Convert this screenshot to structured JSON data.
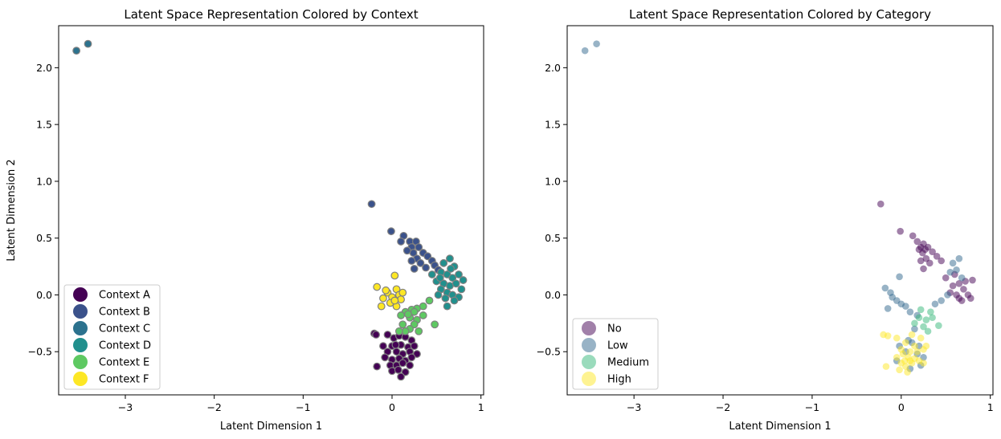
{
  "chart_data": [
    {
      "type": "scatter",
      "title": "Latent Space Representation Colored by Context",
      "xlabel": "Latent Dimension 1",
      "ylabel": "Latent Dimension 2",
      "xlim": [
        -3.75,
        1.03
      ],
      "ylim": [
        -0.88,
        2.37
      ],
      "xticks": [
        -3,
        -2,
        -1,
        0,
        1
      ],
      "yticks": [
        -0.5,
        0.0,
        0.5,
        1.0,
        1.5,
        2.0
      ],
      "xtick_labels": [
        "−3",
        "−2",
        "−1",
        "0",
        "1"
      ],
      "ytick_labels": [
        "−0.5",
        "0.0",
        "0.5",
        "1.0",
        "1.5",
        "2.0"
      ],
      "legend_position": "lower-left",
      "marker_edge": "#808080",
      "marker_alpha": 1.0,
      "series": [
        {
          "name": "Context A",
          "color": "#440154",
          "points": [
            [
              -0.05,
              -0.35
            ],
            [
              0.02,
              -0.38
            ],
            [
              0.08,
              -0.36
            ],
            [
              0.15,
              -0.37
            ],
            [
              0.22,
              -0.4
            ],
            [
              -0.1,
              -0.45
            ],
            [
              0.0,
              -0.45
            ],
            [
              0.1,
              -0.44
            ],
            [
              0.18,
              -0.46
            ],
            [
              0.25,
              -0.45
            ],
            [
              -0.05,
              -0.5
            ],
            [
              0.05,
              -0.5
            ],
            [
              0.12,
              -0.52
            ],
            [
              0.2,
              -0.5
            ],
            [
              0.28,
              -0.52
            ],
            [
              -0.08,
              -0.55
            ],
            [
              0.0,
              -0.57
            ],
            [
              0.08,
              -0.56
            ],
            [
              0.15,
              -0.58
            ],
            [
              0.22,
              -0.55
            ],
            [
              -0.02,
              -0.62
            ],
            [
              0.05,
              -0.62
            ],
            [
              0.12,
              -0.6
            ],
            [
              0.2,
              -0.62
            ],
            [
              0.0,
              -0.67
            ],
            [
              0.07,
              -0.66
            ],
            [
              0.15,
              -0.68
            ],
            [
              0.1,
              -0.72
            ],
            [
              -0.2,
              -0.34
            ],
            [
              -0.18,
              -0.35
            ],
            [
              -0.17,
              -0.63
            ],
            [
              0.04,
              -0.44
            ]
          ]
        },
        {
          "name": "Context B",
          "color": "#3b528b",
          "points": [
            [
              -0.23,
              0.8
            ],
            [
              -0.01,
              0.56
            ],
            [
              0.13,
              0.52
            ],
            [
              0.2,
              0.47
            ],
            [
              0.27,
              0.47
            ],
            [
              0.22,
              0.42
            ],
            [
              0.3,
              0.42
            ],
            [
              0.35,
              0.37
            ],
            [
              0.24,
              0.37
            ],
            [
              0.28,
              0.32
            ],
            [
              0.4,
              0.34
            ],
            [
              0.45,
              0.3
            ],
            [
              0.32,
              0.28
            ],
            [
              0.48,
              0.26
            ],
            [
              0.38,
              0.24
            ],
            [
              0.22,
              0.3
            ],
            [
              0.25,
              0.23
            ],
            [
              0.52,
              0.22
            ],
            [
              0.1,
              0.47
            ],
            [
              0.17,
              0.39
            ]
          ]
        },
        {
          "name": "Context C",
          "color": "#2c728e",
          "points": [
            [
              -3.55,
              2.15
            ],
            [
              -3.42,
              2.21
            ]
          ]
        },
        {
          "name": "Context D",
          "color": "#21908d",
          "points": [
            [
              0.58,
              0.28
            ],
            [
              0.65,
              0.32
            ],
            [
              0.7,
              0.25
            ],
            [
              0.55,
              0.2
            ],
            [
              0.62,
              0.18
            ],
            [
              0.68,
              0.15
            ],
            [
              0.75,
              0.18
            ],
            [
              0.8,
              0.13
            ],
            [
              0.5,
              0.12
            ],
            [
              0.58,
              0.1
            ],
            [
              0.65,
              0.08
            ],
            [
              0.72,
              0.1
            ],
            [
              0.78,
              0.05
            ],
            [
              0.55,
              0.05
            ],
            [
              0.62,
              0.02
            ],
            [
              0.68,
              0.0
            ],
            [
              0.75,
              -0.02
            ],
            [
              0.6,
              -0.03
            ],
            [
              0.52,
              0.0
            ],
            [
              0.7,
              -0.05
            ],
            [
              0.62,
              -0.1
            ],
            [
              0.45,
              0.18
            ],
            [
              0.66,
              0.23
            ],
            [
              0.54,
              0.15
            ]
          ]
        },
        {
          "name": "Context E",
          "color": "#5ec962",
          "points": [
            [
              0.42,
              -0.05
            ],
            [
              0.35,
              -0.1
            ],
            [
              0.28,
              -0.12
            ],
            [
              0.22,
              -0.13
            ],
            [
              0.15,
              -0.15
            ],
            [
              0.1,
              -0.18
            ],
            [
              0.2,
              -0.2
            ],
            [
              0.28,
              -0.22
            ],
            [
              0.35,
              -0.18
            ],
            [
              0.25,
              -0.26
            ],
            [
              0.12,
              -0.26
            ],
            [
              0.2,
              -0.3
            ],
            [
              0.15,
              -0.32
            ],
            [
              0.08,
              -0.32
            ],
            [
              0.3,
              -0.32
            ],
            [
              0.48,
              -0.26
            ],
            [
              0.25,
              -0.15
            ],
            [
              0.18,
              -0.17
            ]
          ]
        },
        {
          "name": "Context F",
          "color": "#fde725",
          "points": [
            [
              -0.17,
              0.07
            ],
            [
              0.03,
              0.17
            ],
            [
              -0.05,
              0.02
            ],
            [
              0.05,
              0.05
            ],
            [
              0.0,
              -0.02
            ],
            [
              0.08,
              0.0
            ],
            [
              -0.1,
              -0.03
            ],
            [
              -0.02,
              -0.07
            ],
            [
              0.1,
              -0.04
            ],
            [
              0.05,
              -0.1
            ],
            [
              -0.12,
              -0.1
            ],
            [
              0.03,
              -0.05
            ],
            [
              0.12,
              0.02
            ],
            [
              -0.07,
              0.04
            ]
          ]
        }
      ]
    },
    {
      "type": "scatter",
      "title": "Latent Space Representation Colored by Category",
      "xlabel": "Latent Dimension 1",
      "ylabel": "",
      "xlim": [
        -3.75,
        1.03
      ],
      "ylim": [
        -0.88,
        2.37
      ],
      "xticks": [
        -3,
        -2,
        -1,
        0,
        1
      ],
      "yticks": [
        -0.5,
        0.0,
        0.5,
        1.0,
        1.5,
        2.0
      ],
      "xtick_labels": [
        "−3",
        "−2",
        "−1",
        "0",
        "1"
      ],
      "ytick_labels": [
        "−0.5",
        "0.0",
        "0.5",
        "1.0",
        "1.5",
        "2.0"
      ],
      "legend_position": "lower-left",
      "marker_edge": "none",
      "marker_alpha": 0.5,
      "series": [
        {
          "name": "No",
          "color": "#440154",
          "points": [
            [
              -0.23,
              0.8
            ],
            [
              -0.01,
              0.56
            ],
            [
              0.13,
              0.52
            ],
            [
              0.18,
              0.47
            ],
            [
              0.25,
              0.45
            ],
            [
              0.22,
              0.42
            ],
            [
              0.3,
              0.42
            ],
            [
              0.35,
              0.38
            ],
            [
              0.24,
              0.37
            ],
            [
              0.28,
              0.32
            ],
            [
              0.4,
              0.34
            ],
            [
              0.45,
              0.3
            ],
            [
              0.32,
              0.28
            ],
            [
              0.22,
              0.3
            ],
            [
              0.25,
              0.23
            ],
            [
              0.2,
              0.4
            ],
            [
              0.27,
              0.4
            ],
            [
              0.6,
              0.18
            ],
            [
              0.65,
              0.1
            ],
            [
              0.7,
              0.05
            ],
            [
              0.75,
              0.0
            ],
            [
              0.62,
              0.0
            ],
            [
              0.68,
              -0.05
            ],
            [
              0.72,
              0.12
            ],
            [
              0.8,
              0.13
            ],
            [
              0.58,
              0.08
            ],
            [
              0.55,
              0.02
            ],
            [
              0.65,
              -0.03
            ],
            [
              0.78,
              -0.03
            ],
            [
              0.5,
              0.15
            ]
          ]
        },
        {
          "name": "Low",
          "color": "#31688e",
          "points": [
            [
              -3.55,
              2.15
            ],
            [
              -3.42,
              2.21
            ],
            [
              0.58,
              0.28
            ],
            [
              0.65,
              0.32
            ],
            [
              0.55,
              0.2
            ],
            [
              0.62,
              0.22
            ],
            [
              0.68,
              0.15
            ],
            [
              0.52,
              0.0
            ],
            [
              0.45,
              -0.05
            ],
            [
              0.38,
              -0.08
            ],
            [
              -0.18,
              0.06
            ],
            [
              -0.1,
              -0.02
            ],
            [
              -0.12,
              0.02
            ],
            [
              -0.05,
              -0.05
            ],
            [
              0.0,
              -0.08
            ],
            [
              0.05,
              -0.1
            ],
            [
              -0.15,
              -0.12
            ],
            [
              0.1,
              -0.15
            ],
            [
              0.18,
              -0.18
            ],
            [
              -0.02,
              0.16
            ],
            [
              0.15,
              -0.3
            ],
            [
              0.2,
              -0.45
            ],
            [
              0.12,
              -0.42
            ],
            [
              0.05,
              -0.5
            ],
            [
              0.18,
              -0.52
            ],
            [
              0.25,
              -0.55
            ],
            [
              -0.05,
              -0.58
            ],
            [
              0.1,
              -0.65
            ],
            [
              0.22,
              -0.62
            ],
            [
              -0.02,
              -0.45
            ],
            [
              0.08,
              -0.4
            ]
          ]
        },
        {
          "name": "Medium",
          "color": "#35b779",
          "points": [
            [
              0.42,
              -0.27
            ],
            [
              0.35,
              -0.2
            ],
            [
              0.28,
              -0.22
            ],
            [
              0.2,
              -0.2
            ],
            [
              0.25,
              -0.28
            ],
            [
              0.3,
              -0.32
            ],
            [
              0.15,
              -0.25
            ],
            [
              0.33,
              -0.15
            ],
            [
              0.22,
              -0.13
            ]
          ]
        },
        {
          "name": "High",
          "color": "#fde725",
          "points": [
            [
              -0.2,
              -0.35
            ],
            [
              -0.15,
              -0.36
            ],
            [
              -0.17,
              -0.63
            ],
            [
              -0.05,
              -0.38
            ],
            [
              0.05,
              -0.42
            ],
            [
              0.12,
              -0.35
            ],
            [
              0.22,
              -0.38
            ],
            [
              0.15,
              -0.45
            ],
            [
              0.1,
              -0.5
            ],
            [
              0.02,
              -0.52
            ],
            [
              -0.05,
              -0.55
            ],
            [
              0.08,
              -0.55
            ],
            [
              0.18,
              -0.5
            ],
            [
              0.25,
              -0.48
            ],
            [
              0.0,
              -0.6
            ],
            [
              0.05,
              -0.63
            ],
            [
              -0.02,
              -0.66
            ],
            [
              0.12,
              -0.6
            ],
            [
              0.2,
              -0.58
            ],
            [
              0.07,
              -0.68
            ],
            [
              0.0,
              -0.48
            ],
            [
              0.15,
              -0.56
            ],
            [
              0.25,
              -0.6
            ],
            [
              0.04,
              -0.58
            ],
            [
              0.28,
              -0.45
            ],
            [
              0.1,
              -0.58
            ]
          ]
        }
      ]
    }
  ]
}
